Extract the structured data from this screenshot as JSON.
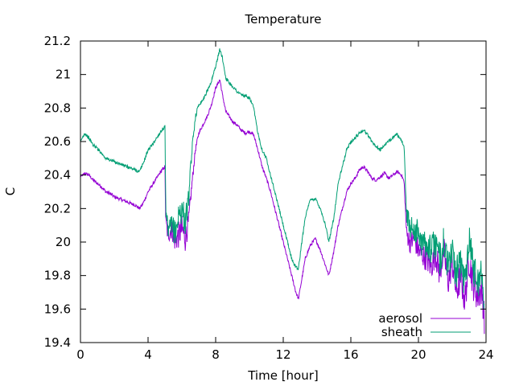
{
  "chart_data": {
    "type": "line",
    "title": "Temperature",
    "xlabel": "Time [hour]",
    "ylabel": "C",
    "xlim": [
      0,
      24
    ],
    "ylim": [
      19.4,
      21.2
    ],
    "xticks": [
      "0",
      "4",
      "8",
      "12",
      "16",
      "20",
      "24"
    ],
    "yticks": [
      "19.4",
      "19.6",
      "19.8",
      "20",
      "20.2",
      "20.4",
      "20.6",
      "20.8",
      "21",
      "21.2"
    ],
    "grid": false,
    "legend_position": "bottom-right",
    "series": [
      {
        "name": "aerosol",
        "color": "#9400d3",
        "x": [
          0,
          0.25,
          0.5,
          0.75,
          1,
          1.25,
          1.5,
          1.75,
          2,
          2.25,
          2.5,
          2.75,
          3,
          3.25,
          3.5,
          3.75,
          4,
          4.25,
          4.5,
          4.75,
          5,
          5.05,
          5.2,
          5.4,
          5.6,
          5.8,
          6,
          6.2,
          6.4,
          6.6,
          6.8,
          7,
          7.25,
          7.5,
          7.75,
          8,
          8.25,
          8.4,
          8.6,
          8.8,
          9,
          9.25,
          9.5,
          9.75,
          10,
          10.25,
          10.5,
          10.75,
          11,
          11.25,
          11.5,
          11.75,
          12,
          12.25,
          12.5,
          12.75,
          12.9,
          13.1,
          13.3,
          13.6,
          13.9,
          14.2,
          14.5,
          14.7,
          15,
          15.25,
          15.5,
          15.75,
          16,
          16.25,
          16.5,
          16.75,
          17,
          17.25,
          17.5,
          17.75,
          18,
          18.25,
          18.5,
          18.75,
          19,
          19.15,
          19.3,
          19.5,
          19.75,
          20,
          20.25,
          20.5,
          20.75,
          21,
          21.25,
          21.5,
          21.75,
          22,
          22.25,
          22.5,
          22.75,
          23,
          23.25,
          23.5,
          23.75,
          23.9
        ],
        "y": [
          20.39,
          20.41,
          20.4,
          20.37,
          20.35,
          20.33,
          20.3,
          20.29,
          20.27,
          20.26,
          20.25,
          20.24,
          20.23,
          20.22,
          20.2,
          20.24,
          20.3,
          20.34,
          20.38,
          20.42,
          20.45,
          20.1,
          20.05,
          20.08,
          20.0,
          20.04,
          20.08,
          20.02,
          20.12,
          20.35,
          20.55,
          20.65,
          20.7,
          20.75,
          20.82,
          20.92,
          20.97,
          20.88,
          20.78,
          20.75,
          20.72,
          20.7,
          20.67,
          20.65,
          20.66,
          20.64,
          20.55,
          20.45,
          20.38,
          20.3,
          20.2,
          20.1,
          20.0,
          19.9,
          19.8,
          19.7,
          19.66,
          19.78,
          19.9,
          19.98,
          20.02,
          19.95,
          19.86,
          19.8,
          19.95,
          20.1,
          20.2,
          20.3,
          20.35,
          20.38,
          20.43,
          20.45,
          20.42,
          20.38,
          20.37,
          20.39,
          20.41,
          20.38,
          20.4,
          20.42,
          20.4,
          20.36,
          20.05,
          20.0,
          20.02,
          19.95,
          19.92,
          19.9,
          19.85,
          19.93,
          19.82,
          19.95,
          19.76,
          19.88,
          19.7,
          19.8,
          19.65,
          19.9,
          19.75,
          19.68,
          19.72,
          19.55
        ],
        "noise": [
          0,
          0.01,
          0.01,
          0.01,
          0.01,
          0.01,
          0.01,
          0.01,
          0.01,
          0.01,
          0.01,
          0.01,
          0.01,
          0.01,
          0.01,
          0.01,
          0.01,
          0.01,
          0.01,
          0.01,
          0.01,
          0.06,
          0.06,
          0.06,
          0.06,
          0.08,
          0.08,
          0.08,
          0.06,
          0.03,
          0.02,
          0.01,
          0.01,
          0.01,
          0.01,
          0.01,
          0.01,
          0.01,
          0.01,
          0.01,
          0.01,
          0.01,
          0.01,
          0.01,
          0.01,
          0.01,
          0.01,
          0.01,
          0.01,
          0.01,
          0.01,
          0.01,
          0.01,
          0.01,
          0.01,
          0.01,
          0.01,
          0.01,
          0.01,
          0.01,
          0.01,
          0.01,
          0.01,
          0.01,
          0.01,
          0.01,
          0.01,
          0.01,
          0.01,
          0.01,
          0.01,
          0.01,
          0.01,
          0.01,
          0.01,
          0.01,
          0.01,
          0.01,
          0.01,
          0.01,
          0.01,
          0.01,
          0.05,
          0.07,
          0.07,
          0.07,
          0.07,
          0.08,
          0.08,
          0.08,
          0.09,
          0.09,
          0.09,
          0.09,
          0.1,
          0.1,
          0.1,
          0.1,
          0.1,
          0.1,
          0.1,
          0.1
        ]
      },
      {
        "name": "sheath",
        "color": "#009e73",
        "x": [
          0,
          0.25,
          0.5,
          0.75,
          1,
          1.25,
          1.5,
          1.75,
          2,
          2.25,
          2.5,
          2.75,
          3,
          3.25,
          3.5,
          3.75,
          4,
          4.25,
          4.5,
          4.75,
          5,
          5.05,
          5.2,
          5.4,
          5.6,
          5.8,
          6,
          6.2,
          6.4,
          6.6,
          6.8,
          7,
          7.25,
          7.5,
          7.75,
          8,
          8.25,
          8.4,
          8.6,
          8.8,
          9,
          9.25,
          9.5,
          9.75,
          10,
          10.25,
          10.5,
          10.75,
          11,
          11.25,
          11.5,
          11.75,
          12,
          12.25,
          12.5,
          12.75,
          12.9,
          13.1,
          13.3,
          13.6,
          13.9,
          14.2,
          14.5,
          14.7,
          15,
          15.25,
          15.5,
          15.75,
          16,
          16.25,
          16.5,
          16.75,
          17,
          17.25,
          17.5,
          17.75,
          18,
          18.25,
          18.5,
          18.75,
          19,
          19.15,
          19.3,
          19.5,
          19.75,
          20,
          20.25,
          20.5,
          20.75,
          21,
          21.25,
          21.5,
          21.75,
          22,
          22.25,
          22.5,
          22.75,
          23,
          23.25,
          23.5,
          23.75,
          23.9
        ],
        "y": [
          20.6,
          20.65,
          20.62,
          20.58,
          20.56,
          20.53,
          20.5,
          20.49,
          20.48,
          20.47,
          20.46,
          20.45,
          20.44,
          20.43,
          20.42,
          20.48,
          20.55,
          20.58,
          20.62,
          20.66,
          20.69,
          20.15,
          20.05,
          20.1,
          20.05,
          20.15,
          20.2,
          20.12,
          20.25,
          20.55,
          20.75,
          20.82,
          20.85,
          20.9,
          20.96,
          21.05,
          21.15,
          21.1,
          20.98,
          20.95,
          20.93,
          20.9,
          20.88,
          20.87,
          20.86,
          20.8,
          20.65,
          20.55,
          20.5,
          20.4,
          20.3,
          20.2,
          20.1,
          20.0,
          19.9,
          19.85,
          19.84,
          20.0,
          20.15,
          20.25,
          20.26,
          20.2,
          20.1,
          20.0,
          20.15,
          20.35,
          20.45,
          20.55,
          20.6,
          20.62,
          20.65,
          20.67,
          20.64,
          20.6,
          20.57,
          20.55,
          20.58,
          20.6,
          20.63,
          20.64,
          20.6,
          20.58,
          20.15,
          20.1,
          20.08,
          20.05,
          19.98,
          20.0,
          19.95,
          20.0,
          19.9,
          20.0,
          19.85,
          19.95,
          19.8,
          19.88,
          19.75,
          20.05,
          19.85,
          19.78,
          19.8,
          19.6
        ],
        "noise": [
          0,
          0.01,
          0.01,
          0.01,
          0.01,
          0.01,
          0.01,
          0.01,
          0.01,
          0.01,
          0.01,
          0.01,
          0.01,
          0.01,
          0.01,
          0.01,
          0.01,
          0.01,
          0.01,
          0.01,
          0.01,
          0.07,
          0.07,
          0.07,
          0.08,
          0.09,
          0.09,
          0.09,
          0.07,
          0.03,
          0.02,
          0.01,
          0.01,
          0.01,
          0.01,
          0.01,
          0.01,
          0.01,
          0.01,
          0.01,
          0.01,
          0.01,
          0.01,
          0.01,
          0.01,
          0.01,
          0.01,
          0.01,
          0.01,
          0.01,
          0.01,
          0.01,
          0.01,
          0.01,
          0.01,
          0.01,
          0.01,
          0.01,
          0.01,
          0.01,
          0.01,
          0.01,
          0.01,
          0.01,
          0.01,
          0.01,
          0.01,
          0.01,
          0.01,
          0.01,
          0.01,
          0.01,
          0.01,
          0.01,
          0.01,
          0.01,
          0.01,
          0.01,
          0.01,
          0.01,
          0.01,
          0.01,
          0.05,
          0.08,
          0.08,
          0.08,
          0.08,
          0.09,
          0.09,
          0.09,
          0.1,
          0.1,
          0.1,
          0.1,
          0.11,
          0.11,
          0.11,
          0.11,
          0.11,
          0.11,
          0.11,
          0.11
        ]
      }
    ]
  }
}
